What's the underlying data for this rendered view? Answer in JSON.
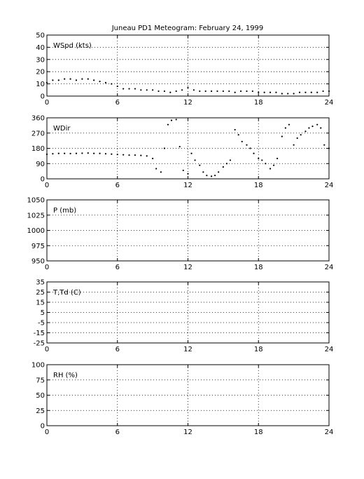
{
  "title": "Juneau PD1 Meteogram:  February 24, 1999",
  "chart_data": [
    {
      "type": "scatter",
      "label": "WSpd (kts)",
      "xlim": [
        0,
        24
      ],
      "ylim": [
        0,
        50
      ],
      "x_ticks": [
        0,
        6,
        12,
        18,
        24
      ],
      "y_ticks": [
        0,
        10,
        20,
        30,
        40,
        50
      ],
      "grid": "dotted",
      "series": [
        {
          "x": [
            0,
            0.5,
            1,
            1.5,
            2,
            2.5,
            3,
            3.5,
            4,
            4.5,
            5,
            5.5,
            6,
            6.5,
            7,
            7.5,
            8,
            8.5,
            9,
            9.5,
            10,
            10.5,
            11,
            11.5,
            12,
            12.5,
            13,
            13.5,
            14,
            14.5,
            15,
            15.5,
            16,
            16.5,
            17,
            17.5,
            18,
            18.5,
            19,
            19.5,
            20,
            20.5,
            21,
            21.5,
            22,
            22.5,
            23,
            23.5,
            24
          ],
          "values": [
            11,
            13,
            13,
            14,
            14,
            13,
            14,
            14,
            13,
            12,
            11,
            10,
            8,
            6,
            6,
            6,
            5,
            5,
            5,
            4,
            4,
            3,
            4,
            5,
            7,
            5,
            4,
            4,
            4,
            4,
            4,
            4,
            3,
            4,
            4,
            4,
            3,
            3,
            3,
            3,
            2,
            2,
            2,
            3,
            3,
            3,
            3,
            4,
            4
          ]
        }
      ]
    },
    {
      "type": "scatter",
      "label": "WDir",
      "xlim": [
        0,
        24
      ],
      "ylim": [
        0,
        360
      ],
      "x_ticks": [
        0,
        6,
        12,
        18,
        24
      ],
      "y_ticks": [
        0,
        90,
        180,
        270,
        360
      ],
      "grid": "dotted",
      "series": [
        {
          "x": [
            0,
            0.5,
            1,
            1.5,
            2,
            2.5,
            3,
            3.5,
            4,
            4.5,
            5,
            5.5,
            6,
            6.5,
            7,
            7.5,
            8,
            8.5,
            9,
            9.3,
            9.7,
            10,
            10.3,
            10.6,
            11,
            11.3,
            11.6,
            12,
            12.3,
            12.6,
            13,
            13.3,
            13.6,
            14,
            14.3,
            14.6,
            15,
            15.3,
            15.6,
            16,
            16.3,
            16.6,
            17,
            17.3,
            17.6,
            18,
            18.3,
            18.6,
            19,
            19.3,
            19.6,
            20,
            20.3,
            20.6,
            21,
            21.3,
            21.6,
            22,
            22.3,
            22.6,
            23,
            23.3,
            23.6,
            24
          ],
          "values": [
            145,
            148,
            150,
            150,
            149,
            150,
            151,
            152,
            150,
            150,
            148,
            146,
            144,
            142,
            140,
            140,
            138,
            135,
            120,
            60,
            40,
            180,
            320,
            345,
            350,
            190,
            50,
            30,
            150,
            110,
            80,
            40,
            20,
            15,
            20,
            40,
            70,
            90,
            110,
            290,
            260,
            220,
            200,
            180,
            150,
            120,
            110,
            90,
            60,
            80,
            120,
            250,
            300,
            320,
            200,
            240,
            260,
            280,
            300,
            310,
            320,
            300,
            200,
            180
          ]
        }
      ]
    },
    {
      "type": "scatter",
      "label": "P (mb)",
      "xlim": [
        0,
        24
      ],
      "ylim": [
        950,
        1050
      ],
      "x_ticks": [
        0,
        6,
        12,
        18,
        24
      ],
      "y_ticks": [
        950,
        975,
        1000,
        1025,
        1050
      ],
      "grid": "dotted",
      "series": []
    },
    {
      "type": "scatter",
      "label": "T,Td (C)",
      "xlim": [
        0,
        24
      ],
      "ylim": [
        -25,
        35
      ],
      "x_ticks": [
        0,
        6,
        12,
        18,
        24
      ],
      "y_ticks": [
        -25,
        -15,
        -5,
        5,
        15,
        25,
        35
      ],
      "y_tick_labels": [
        "-25",
        "-15",
        "-5",
        "5",
        "15",
        "25",
        "35"
      ],
      "grid": "dotted",
      "series": []
    },
    {
      "type": "scatter",
      "label": "RH (%)",
      "xlim": [
        0,
        24
      ],
      "ylim": [
        0,
        100
      ],
      "x_ticks": [
        0,
        6,
        12,
        18,
        24
      ],
      "y_ticks": [
        0,
        25,
        50,
        75,
        100
      ],
      "grid": "dotted",
      "series": []
    }
  ]
}
